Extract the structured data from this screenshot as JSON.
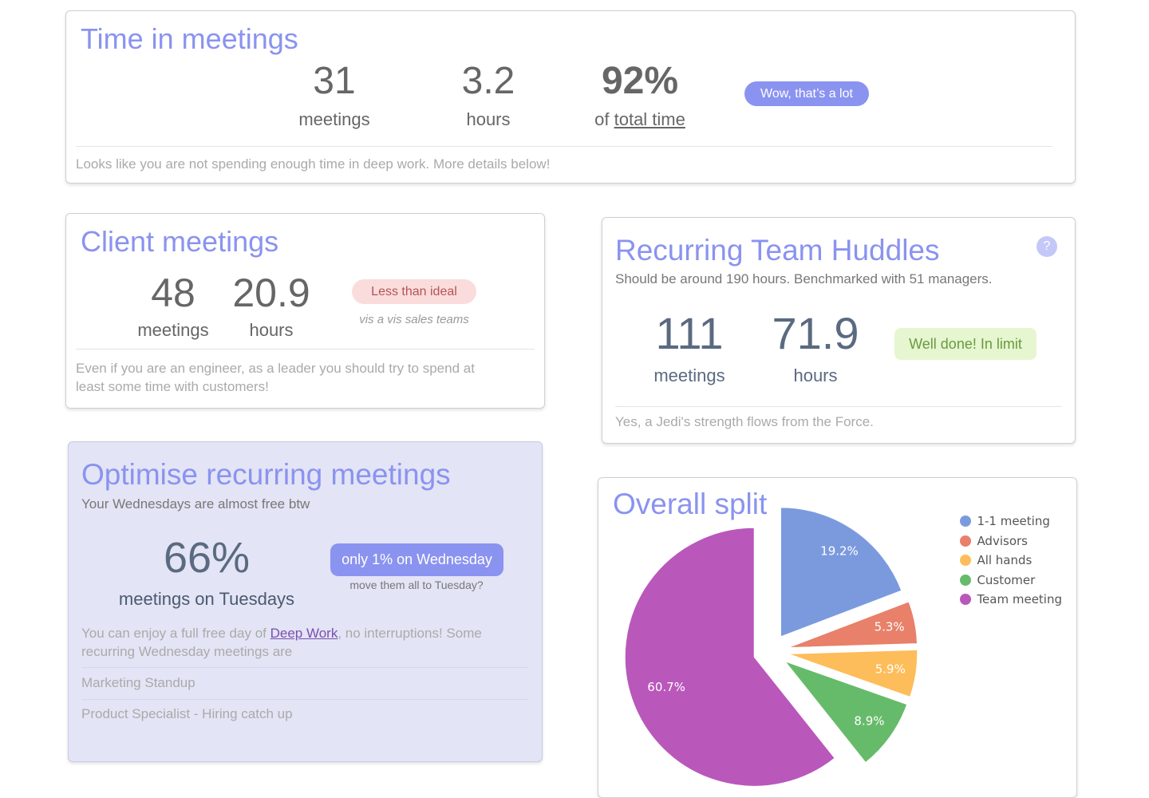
{
  "time_card": {
    "title": "Time in meetings",
    "stats": [
      {
        "value": "31",
        "label": "meetings"
      },
      {
        "value": "3.2",
        "label": "hours"
      },
      {
        "value": "92%",
        "label_prefix": "of",
        "label_link": "total time"
      }
    ],
    "badge": "Wow, that’s a lot",
    "note": "Looks like you are not spending enough time in deep work. More details below!"
  },
  "client_card": {
    "title": "Client meetings",
    "stats": [
      {
        "value": "48",
        "label": "meetings"
      },
      {
        "value": "20.9",
        "label": "hours"
      }
    ],
    "badge": "Less than ideal",
    "badge_note": "vis a vis sales teams",
    "note": "Even if you are an engineer, as a leader you should try to spend at least some time with customers!"
  },
  "huddles_card": {
    "title": "Recurring Team Huddles",
    "help": "?",
    "subtitle": "Should be around 190 hours. Benchmarked with 51 managers.",
    "stats": [
      {
        "value": "111",
        "label": "meetings"
      },
      {
        "value": "71.9",
        "label": "hours"
      }
    ],
    "badge": "Well done! In limit",
    "note": "Yes, a Jedi's strength flows from the Force."
  },
  "optimise_card": {
    "title": "Optimise recurring meetings",
    "subtitle": "Your Wednesdays are almost free btw",
    "stat": {
      "value": "66%",
      "label": "meetings on Tuesdays"
    },
    "button": "only 1% on Wednesday",
    "button_note": "move them all to Tuesday?",
    "body": {
      "before": "You can enjoy a full free day of",
      "link": "Deep Work",
      "after": ", no interruptions! Some recurring Wednesday meetings are"
    },
    "meetings": [
      "Marketing Standup",
      "Product Specialist - Hiring catch up"
    ]
  },
  "chart_data": {
    "type": "pie",
    "title": "Overall split",
    "categories": [
      "1-1 meeting",
      "Advisors",
      "All hands",
      "Customer",
      "Team meeting"
    ],
    "values": [
      19.2,
      5.3,
      5.9,
      8.9,
      60.7
    ],
    "value_labels": [
      "19.2%",
      "5.3%",
      "5.9%",
      "8.9%",
      "60.7%"
    ],
    "colors": [
      "#7b9ade",
      "#e8806a",
      "#fdbd5a",
      "#66bb6a",
      "#ba57bb"
    ],
    "legend": "top-right"
  }
}
